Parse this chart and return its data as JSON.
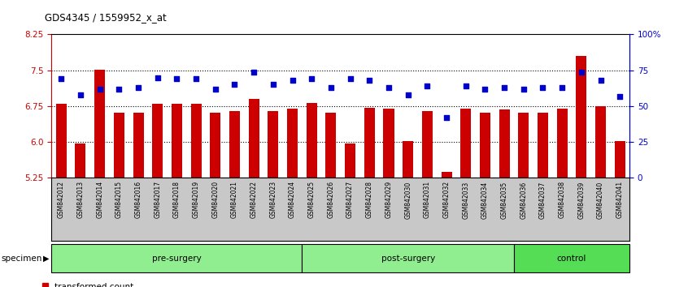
{
  "title": "GDS4345 / 1559952_x_at",
  "samples": [
    "GSM842012",
    "GSM842013",
    "GSM842014",
    "GSM842015",
    "GSM842016",
    "GSM842017",
    "GSM842018",
    "GSM842019",
    "GSM842020",
    "GSM842021",
    "GSM842022",
    "GSM842023",
    "GSM842024",
    "GSM842025",
    "GSM842026",
    "GSM842027",
    "GSM842028",
    "GSM842029",
    "GSM842030",
    "GSM842031",
    "GSM842032",
    "GSM842033",
    "GSM842034",
    "GSM842035",
    "GSM842036",
    "GSM842037",
    "GSM842038",
    "GSM842039",
    "GSM842040",
    "GSM842041"
  ],
  "bar_values": [
    6.8,
    5.97,
    7.52,
    6.62,
    6.62,
    6.8,
    6.8,
    6.8,
    6.62,
    6.65,
    6.9,
    6.65,
    6.7,
    6.82,
    6.62,
    5.97,
    6.72,
    6.7,
    6.02,
    6.65,
    5.38,
    6.7,
    6.62,
    6.68,
    6.62,
    6.62,
    6.7,
    7.8,
    6.75,
    6.02
  ],
  "percentile_values": [
    69,
    58,
    62,
    62,
    63,
    70,
    69,
    69,
    62,
    65,
    74,
    65,
    68,
    69,
    63,
    69,
    68,
    63,
    58,
    64,
    42,
    64,
    62,
    63,
    62,
    63,
    63,
    74,
    68,
    57
  ],
  "ylim_left": [
    5.25,
    8.25
  ],
  "ylim_right": [
    0,
    100
  ],
  "yticks_left": [
    5.25,
    6.0,
    6.75,
    7.5,
    8.25
  ],
  "yticks_right": [
    0,
    25,
    50,
    75,
    100
  ],
  "ytick_labels_right": [
    "0",
    "25",
    "50",
    "75",
    "100%"
  ],
  "hlines": [
    6.0,
    6.75,
    7.5
  ],
  "bar_color": "#CC0000",
  "dot_color": "#0000CC",
  "group_configs": [
    {
      "label": "pre-surgery",
      "start": 0,
      "end": 13,
      "color": "#90EE90"
    },
    {
      "label": "post-surgery",
      "start": 13,
      "end": 24,
      "color": "#90EE90"
    },
    {
      "label": "control",
      "start": 24,
      "end": 30,
      "color": "#55DD55"
    }
  ]
}
